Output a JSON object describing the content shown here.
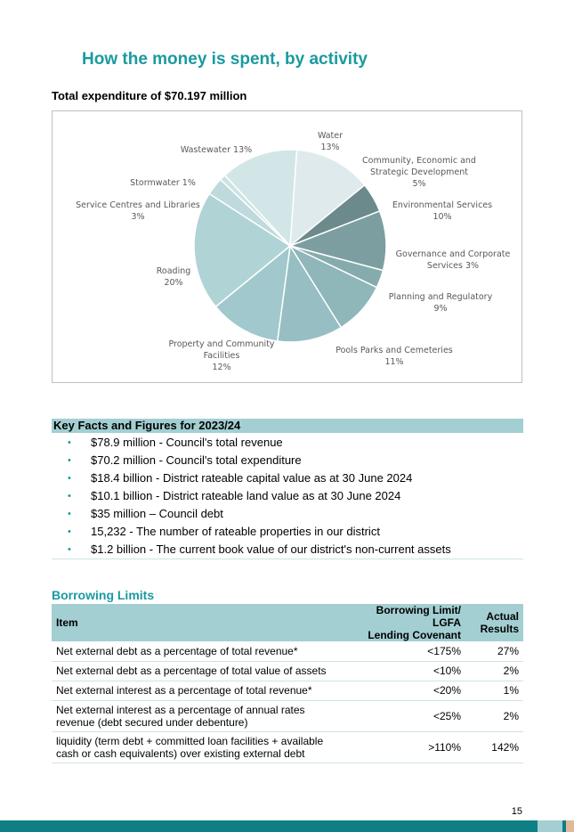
{
  "page": {
    "title": "How the money is spent, by activity",
    "page_number": "15",
    "colors": {
      "accent": "#1a9aa0",
      "band": "#a3cfd3",
      "footer": "#0f7f86",
      "footer_tan": "#e3b89a"
    }
  },
  "chart": {
    "caption": "Total expenditure of $70.197 million"
  },
  "chart_data": {
    "type": "pie",
    "title": "Total expenditure of $70.197 million",
    "slices": [
      {
        "label_lines": [
          "Water",
          "13%"
        ],
        "value": 13,
        "color": "#deeaec"
      },
      {
        "label_lines": [
          "Community, Economic and",
          "Strategic Development",
          "5%"
        ],
        "value": 5,
        "color": "#6c8a8c"
      },
      {
        "label_lines": [
          "Environmental Services",
          "10%"
        ],
        "value": 10,
        "color": "#7c9ea0"
      },
      {
        "label_lines": [
          "Governance and Corporate",
          "Services 3%"
        ],
        "value": 3,
        "color": "#86abad"
      },
      {
        "label_lines": [
          "Planning and Regulatory",
          "9%"
        ],
        "value": 9,
        "color": "#8fb6b9"
      },
      {
        "label_lines": [
          "Pools Parks and Cemeteries",
          "11%"
        ],
        "value": 11,
        "color": "#97bfc3"
      },
      {
        "label_lines": [
          "Property and Community",
          "Facilities",
          "12%"
        ],
        "value": 12,
        "color": "#a1c8cc"
      },
      {
        "label_lines": [
          "Roading",
          "20%"
        ],
        "value": 20,
        "color": "#b0d3d6"
      },
      {
        "label_lines": [
          "Service Centres and Libraries",
          "3%"
        ],
        "value": 3,
        "color": "#bedadd"
      },
      {
        "label_lines": [
          "Stormwater 1%"
        ],
        "value": 1,
        "color": "#cce2e4"
      },
      {
        "label_lines": [
          "Wastewater 13%"
        ],
        "value": 13,
        "color": "#d2e6e8"
      }
    ]
  },
  "key_facts": {
    "heading": "Key Facts and Figures for 2023/24",
    "bullet": "•",
    "items": [
      "$78.9 million - Council's total revenue",
      "$70.2 million - Council's total expenditure",
      "$18.4 billion - District rateable capital value as at 30 June 2024",
      "$10.1 billion - District rateable land value as at 30 June 2024",
      "$35 million – Council debt",
      "15,232 - The number of rateable properties in our district",
      "$1.2 billion - The current book value of our district's non-current assets"
    ]
  },
  "borrowing": {
    "title": "Borrowing Limits",
    "headers": {
      "item": "Item",
      "limit_line1": "Borrowing Limit/ LGFA",
      "limit_line2": "Lending Covenant",
      "actual_line1": "Actual",
      "actual_line2": "Results"
    },
    "rows": [
      {
        "item_line1": "Net external debt as a percentage of total revenue*",
        "item_line2": "",
        "limit": "<175%",
        "actual": "27%"
      },
      {
        "item_line1": "Net external debt as a percentage of total value of assets",
        "item_line2": "",
        "limit": "<10%",
        "actual": "2%"
      },
      {
        "item_line1": "Net external interest as a percentage of total revenue*",
        "item_line2": "",
        "limit": "<20%",
        "actual": "1%"
      },
      {
        "item_line1": "Net external interest as a percentage of annual rates",
        "item_line2": "revenue (debt secured under debenture)",
        "limit": "<25%",
        "actual": "2%"
      },
      {
        "item_line1": "liquidity (term debt + committed loan facilities + available",
        "item_line2": "cash or cash equivalents) over existing external debt",
        "limit": ">110%",
        "actual": "142%"
      }
    ]
  }
}
